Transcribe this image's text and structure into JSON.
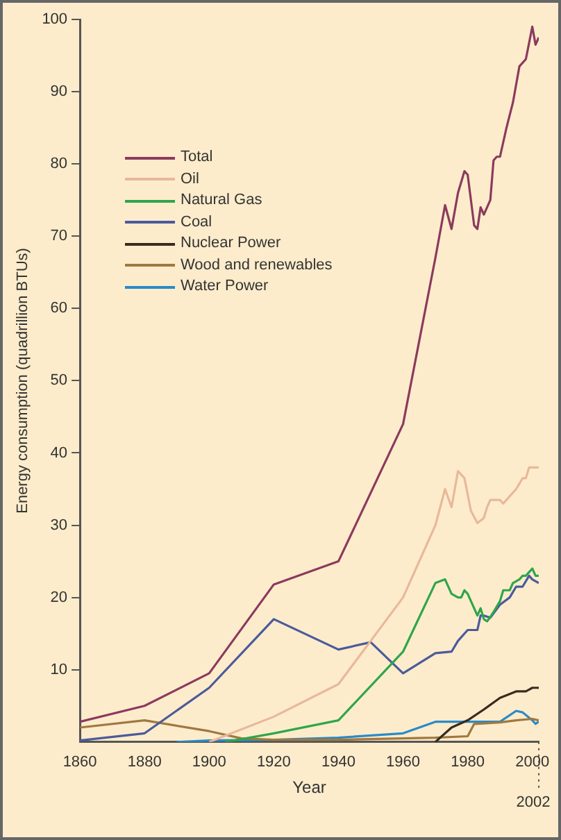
{
  "chart_data": {
    "type": "line",
    "xlabel": "Year",
    "ylabel": "Energy consumption (quadrillion BTUs)",
    "xlim": [
      1860,
      2002
    ],
    "xticks": [
      1860,
      1880,
      1900,
      1920,
      1940,
      1960,
      1980,
      2000
    ],
    "annotations": [
      "2002"
    ],
    "ylim": [
      0,
      100
    ],
    "yticks": [
      10,
      20,
      30,
      40,
      50,
      60,
      70,
      80,
      90,
      100
    ],
    "grid": false,
    "legend": "top left",
    "marker": "none",
    "line_style": "solid",
    "series": [
      {
        "name": "Total",
        "color": "#8b3a5e",
        "x": [
          1860,
          1880,
          1900,
          1920,
          1940,
          1960,
          1970,
          1973,
          1975,
          1977,
          1979,
          1980,
          1982,
          1983,
          1984,
          1985,
          1986,
          1987,
          1988,
          1989,
          1990,
          1992,
          1994,
          1996,
          1998,
          2000,
          2001,
          2002
        ],
        "values": [
          2.8,
          5,
          9.5,
          21.8,
          25,
          44,
          67,
          74.3,
          71,
          76,
          79,
          78.5,
          71.5,
          71,
          74,
          73,
          74,
          75,
          80.5,
          81,
          81,
          85,
          88.5,
          93.5,
          94.5,
          99,
          96.5,
          97.5
        ]
      },
      {
        "name": "Oil",
        "color": "#e8b89a",
        "x": [
          1900,
          1920,
          1940,
          1950,
          1960,
          1970,
          1973,
          1975,
          1977,
          1979,
          1981,
          1983,
          1985,
          1986,
          1987,
          1990,
          1991,
          1993,
          1995,
          1997,
          1998,
          1999,
          2002
        ],
        "values": [
          0,
          3.5,
          8,
          14,
          20,
          30,
          35,
          32.5,
          37.5,
          36.5,
          32,
          30.3,
          31,
          32.5,
          33.5,
          33.5,
          33,
          34,
          35,
          36.5,
          36.5,
          38,
          38
        ]
      },
      {
        "name": "Natural Gas",
        "color": "#2ea64a",
        "x": [
          1905,
          1920,
          1940,
          1960,
          1970,
          1973,
          1975,
          1977,
          1978,
          1979,
          1980,
          1983,
          1984,
          1985,
          1986,
          1987,
          1988,
          1990,
          1991,
          1993,
          1994,
          1996,
          1997,
          1998,
          2000,
          2001,
          2002
        ],
        "values": [
          0,
          1.2,
          3,
          12.5,
          22,
          22.5,
          20.5,
          20,
          20,
          21,
          20.5,
          17.5,
          18.5,
          17,
          16.7,
          17.3,
          18,
          19.5,
          21,
          21,
          22,
          22.5,
          23,
          23,
          24,
          23,
          23
        ]
      },
      {
        "name": "Coal",
        "color": "#4a5a9c",
        "x": [
          1860,
          1880,
          1900,
          1920,
          1940,
          1950,
          1960,
          1970,
          1975,
          1977,
          1980,
          1983,
          1984,
          1985,
          1987,
          1990,
          1993,
          1995,
          1997,
          1999,
          2000,
          2002
        ],
        "values": [
          0.2,
          1.2,
          7.5,
          17,
          12.8,
          13.8,
          9.5,
          12.3,
          12.5,
          14,
          15.5,
          15.5,
          17.5,
          17.5,
          17.2,
          19,
          20,
          21.5,
          21.5,
          23,
          22.5,
          22
        ]
      },
      {
        "name": "Nuclear Power",
        "color": "#3a2a20",
        "x": [
          1970,
          1975,
          1980,
          1985,
          1990,
          1995,
          1998,
          2000,
          2002
        ],
        "values": [
          0,
          2,
          3,
          4.5,
          6.1,
          7,
          7,
          7.5,
          7.5
        ]
      },
      {
        "name": "Wood and renewables",
        "color": "#a07840",
        "x": [
          1860,
          1880,
          1900,
          1910,
          1920,
          1940,
          1960,
          1970,
          1980,
          1982,
          1990,
          1995,
          2000,
          2002
        ],
        "values": [
          2,
          3,
          1.5,
          0.5,
          0.3,
          0.3,
          0.5,
          0.6,
          0.8,
          2.5,
          2.7,
          3,
          3.2,
          3
        ]
      },
      {
        "name": "Water Power",
        "color": "#2a8ac8",
        "x": [
          1890,
          1900,
          1920,
          1940,
          1960,
          1970,
          1980,
          1990,
          1995,
          1997,
          2000,
          2001,
          2002
        ],
        "values": [
          0,
          0.2,
          0.3,
          0.6,
          1.2,
          2.8,
          2.8,
          2.8,
          4.3,
          4.1,
          3,
          2.5,
          2.8
        ]
      }
    ]
  }
}
